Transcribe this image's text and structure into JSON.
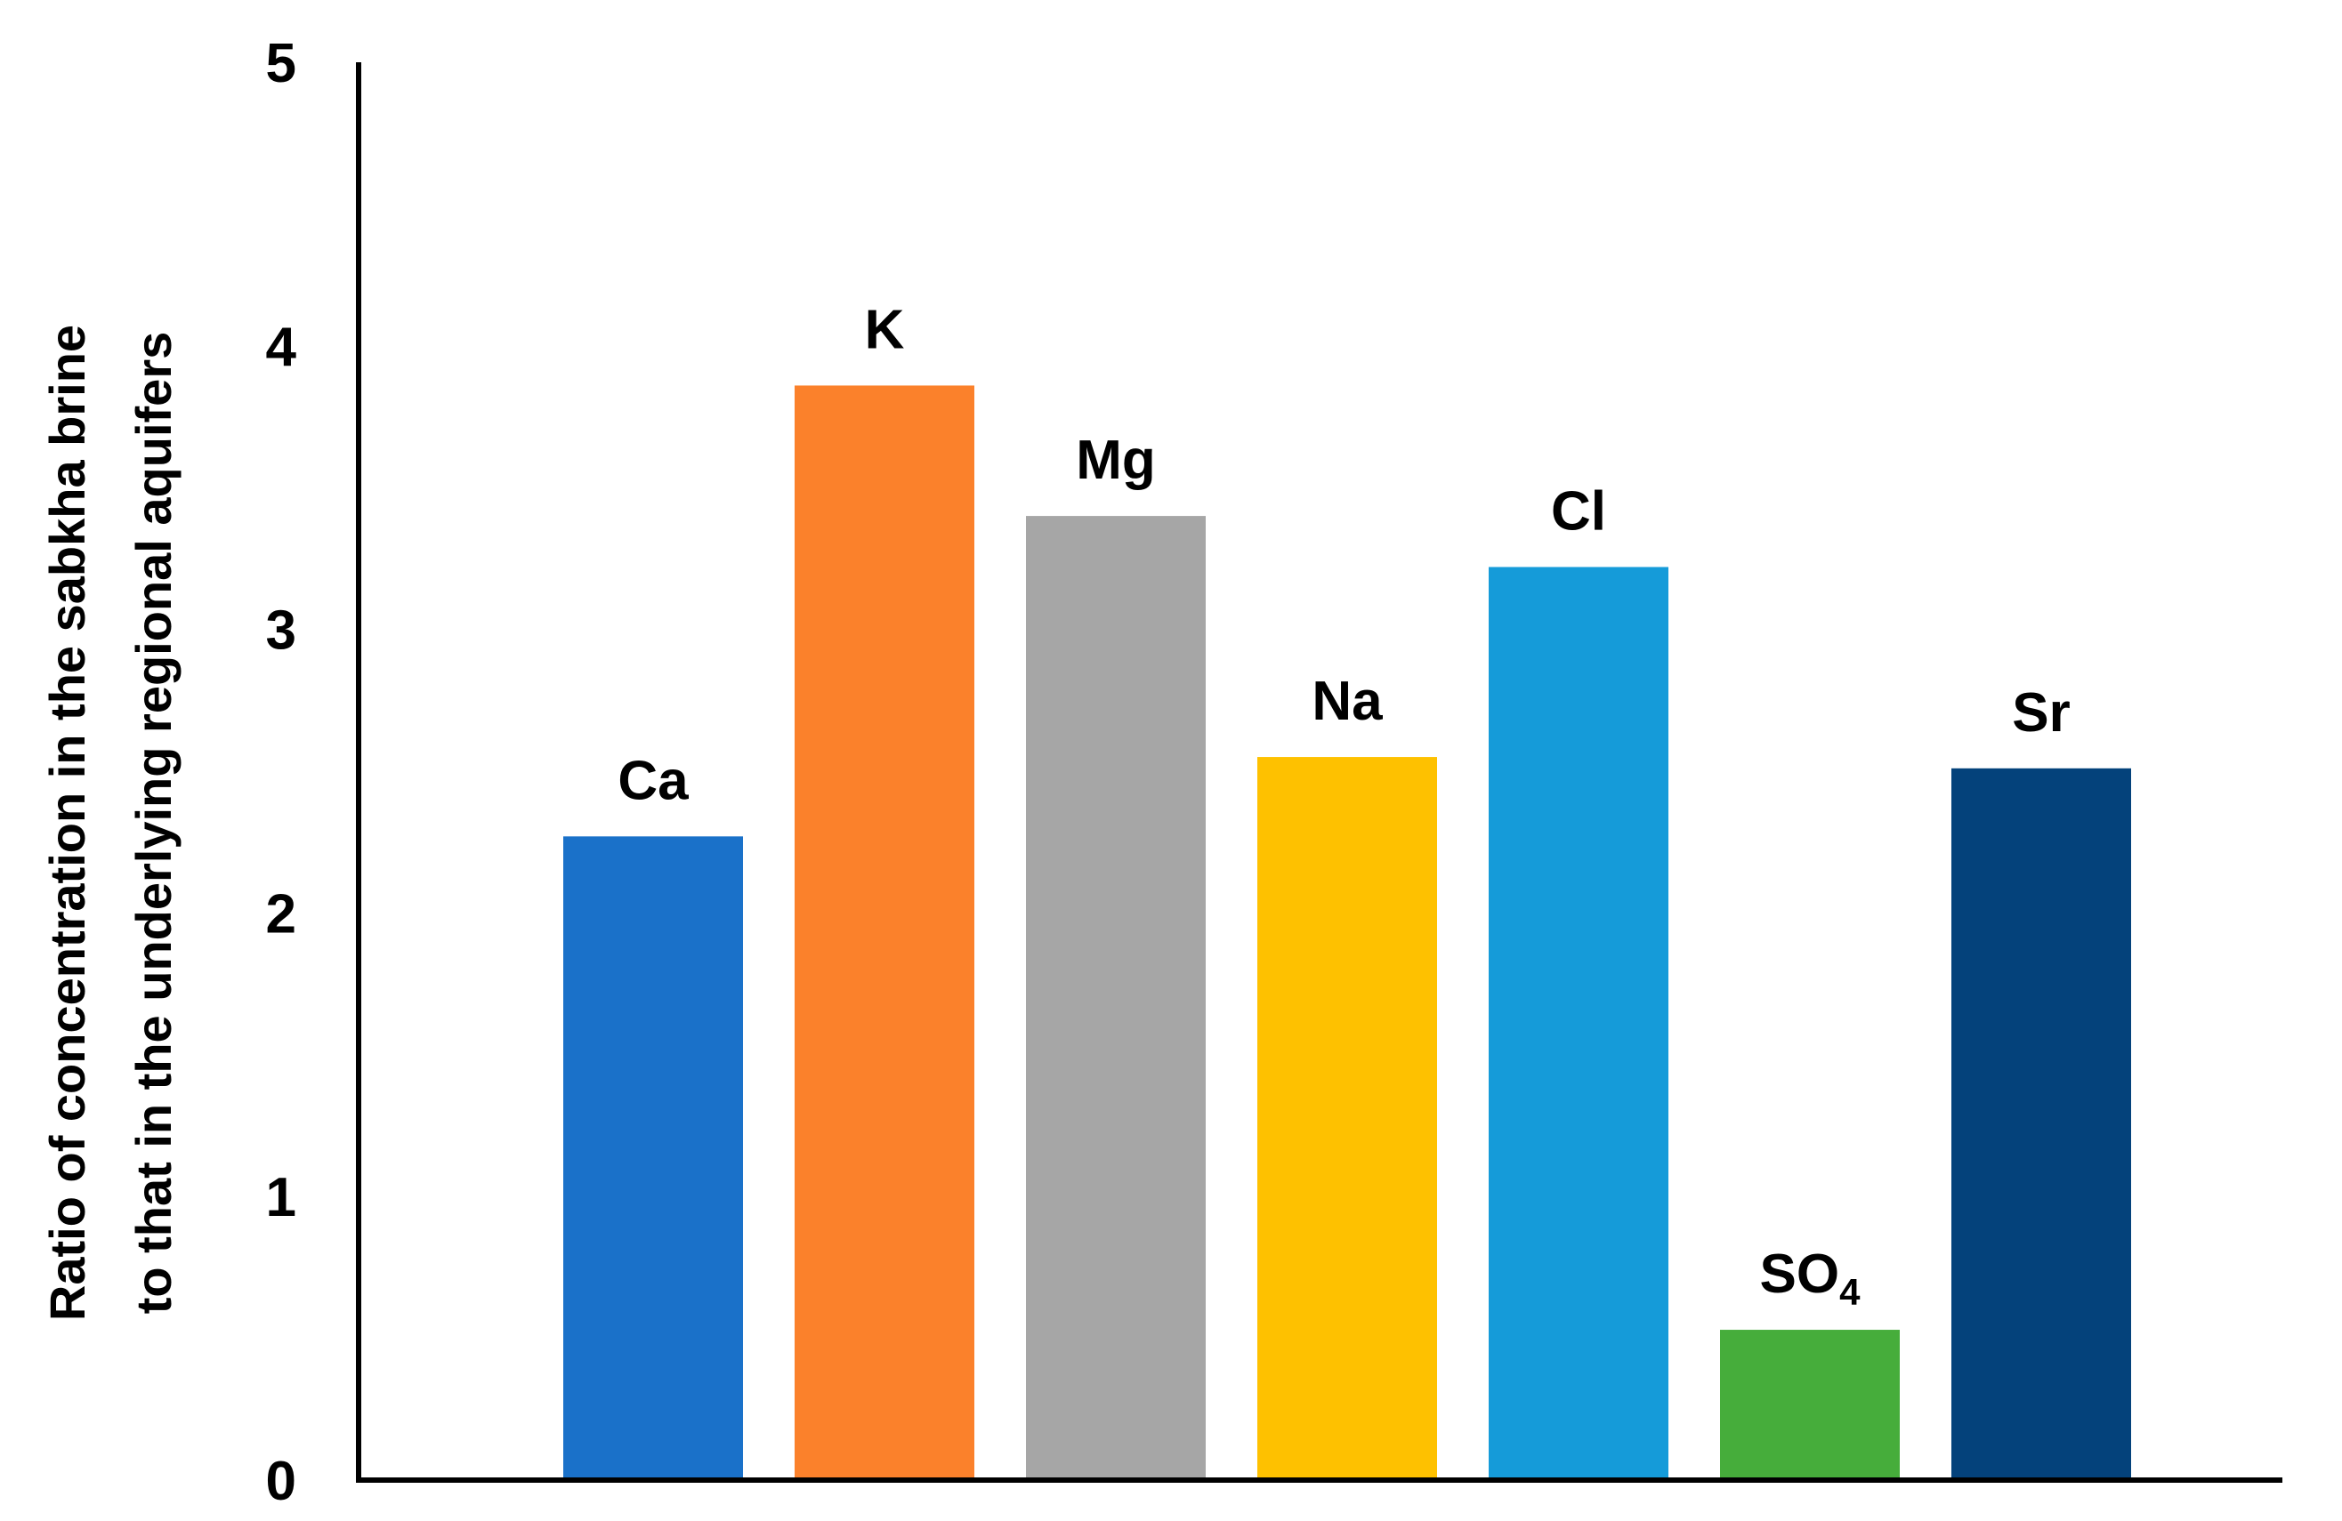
{
  "chart_data": {
    "type": "bar",
    "title": "",
    "xlabel": "",
    "ylabel_lines": [
      "Ratio of concentration in the sabkha brine",
      "to that in the underlying regional aquifers"
    ],
    "ylim": [
      0,
      5
    ],
    "yticks": [
      "0",
      "1",
      "2",
      "3",
      "4",
      "5"
    ],
    "grid": false,
    "legend": "none",
    "categories": [
      {
        "label": "Ca",
        "sub": ""
      },
      {
        "label": "K",
        "sub": ""
      },
      {
        "label": "Mg",
        "sub": ""
      },
      {
        "label": "Na",
        "sub": ""
      },
      {
        "label": "Cl",
        "sub": ""
      },
      {
        "label": "SO",
        "sub": "4"
      },
      {
        "label": "Sr",
        "sub": ""
      }
    ],
    "values": [
      2.27,
      3.86,
      3.4,
      2.55,
      3.22,
      0.53,
      2.51
    ],
    "colors": [
      "#1a71c9",
      "#fb812b",
      "#a6a6a6",
      "#fec100",
      "#159bd9",
      "#46ad3b",
      "#04427b"
    ]
  }
}
